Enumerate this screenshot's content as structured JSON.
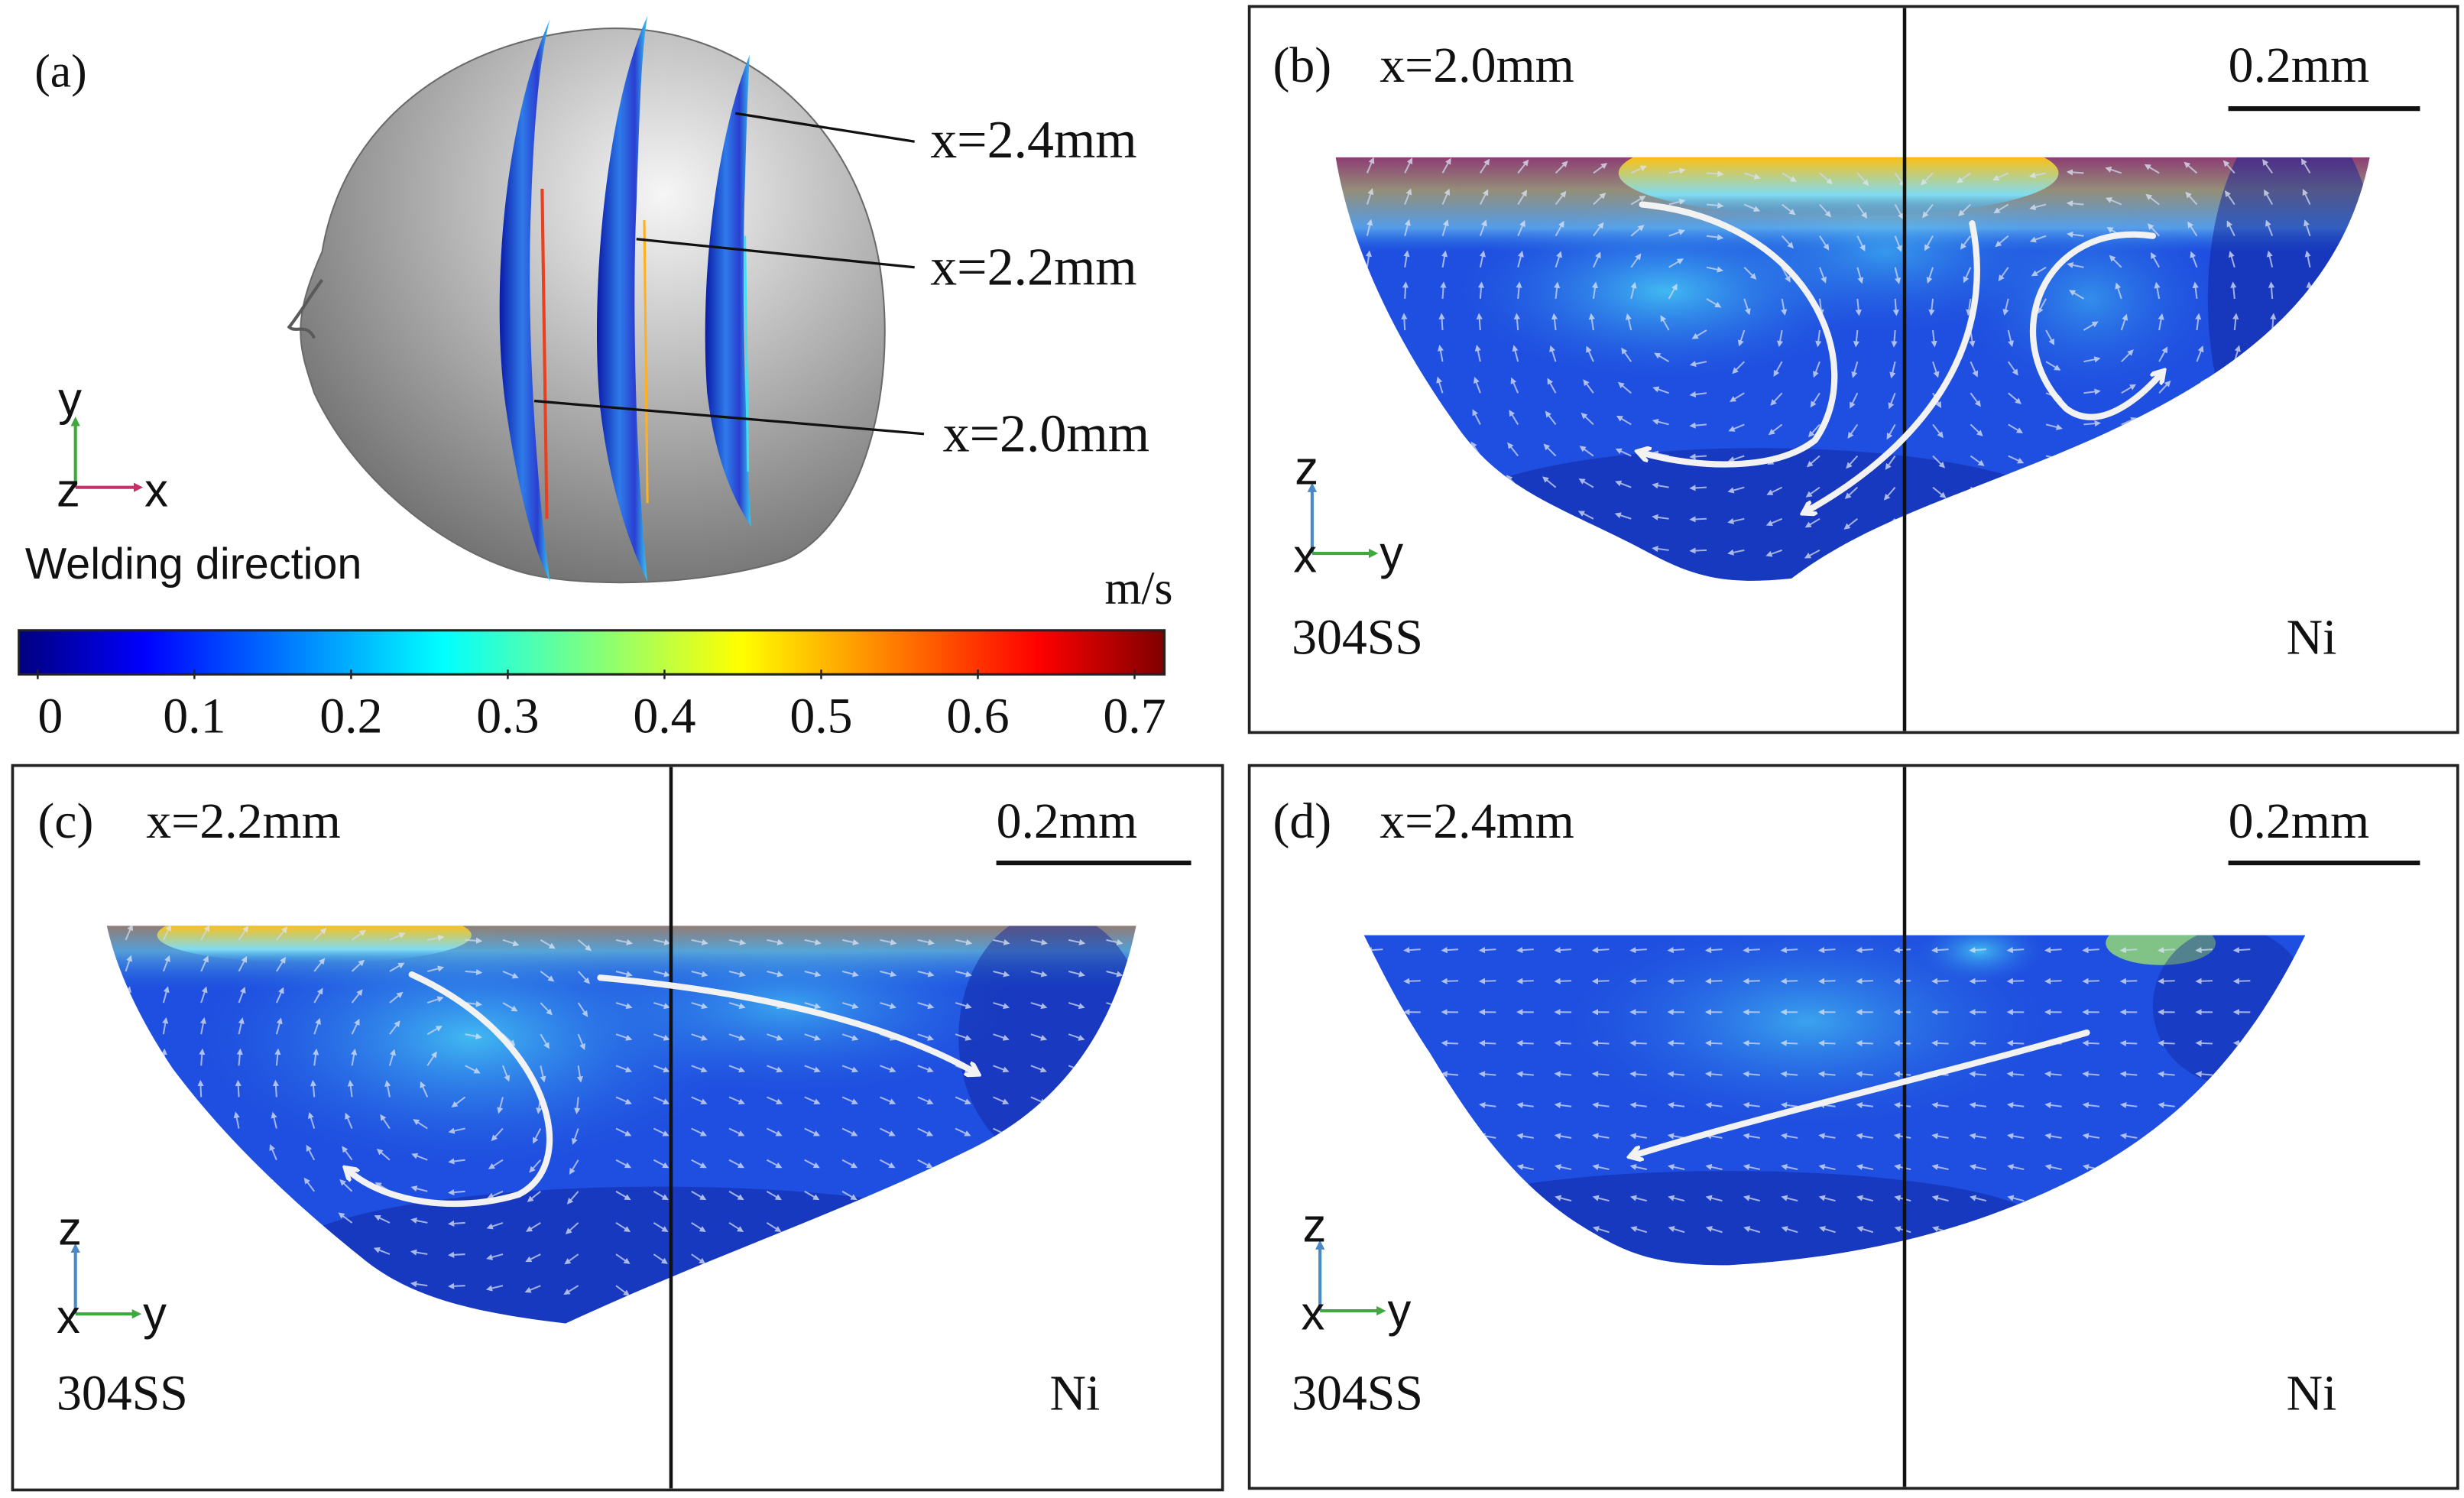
{
  "panel_a": {
    "label": "(a)",
    "slice_labels": [
      "x=2.4mm",
      "x=2.2mm",
      "x=2.0mm"
    ],
    "axes": {
      "vertical": "y",
      "out_of_plane": "z",
      "horizontal": "x"
    },
    "direction_label": "Welding direction"
  },
  "colorbar": {
    "unit": "m/s",
    "ticks": [
      "0",
      "0.1",
      "0.2",
      "0.3",
      "0.4",
      "0.5",
      "0.6",
      "0.7"
    ],
    "colormap": "jet",
    "colors": [
      "#00007f",
      "#0000ff",
      "#0080ff",
      "#00ffff",
      "#80ff80",
      "#ffff00",
      "#ff8000",
      "#ff0000",
      "#7f0000"
    ]
  },
  "panel_b": {
    "label": "(b)",
    "title": "x=2.0mm",
    "scale": "0.2mm",
    "left_material": "304SS",
    "right_material": "Ni",
    "axes": {
      "vertical": "z",
      "out_of_plane": "x",
      "horizontal": "y"
    }
  },
  "panel_c": {
    "label": "(c)",
    "title": "x=2.2mm",
    "scale": "0.2mm",
    "left_material": "304SS",
    "right_material": "Ni",
    "axes": {
      "vertical": "z",
      "out_of_plane": "x",
      "horizontal": "y"
    }
  },
  "panel_d": {
    "label": "(d)",
    "title": "x=2.4mm",
    "scale": "0.2mm",
    "left_material": "304SS",
    "right_material": "Ni",
    "axes": {
      "vertical": "z",
      "out_of_plane": "x",
      "horizontal": "y"
    }
  }
}
